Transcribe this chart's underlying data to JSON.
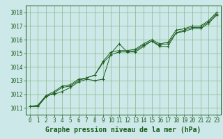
{
  "title": "Graphe pression niveau de la mer (hPa)",
  "background_color": "#cce8e8",
  "grid_color": "#88b888",
  "line_color": "#1a5c1a",
  "marker_color": "#1a5c1a",
  "xlim": [
    -0.5,
    23.5
  ],
  "ylim": [
    1010.5,
    1018.5
  ],
  "xticks": [
    0,
    1,
    2,
    3,
    4,
    5,
    6,
    7,
    8,
    9,
    10,
    11,
    12,
    13,
    14,
    15,
    16,
    17,
    18,
    19,
    20,
    21,
    22,
    23
  ],
  "yticks": [
    1011,
    1012,
    1013,
    1014,
    1015,
    1016,
    1017,
    1018
  ],
  "series": [
    [
      1011.1,
      1011.1,
      1011.9,
      1012.0,
      1012.2,
      1012.5,
      1012.9,
      1013.1,
      1013.0,
      1013.1,
      1015.0,
      1015.7,
      1015.1,
      1015.1,
      1015.5,
      1015.9,
      1015.5,
      1015.5,
      1016.5,
      1016.6,
      1016.8,
      1016.8,
      1017.2,
      1017.8
    ],
    [
      1011.1,
      1011.1,
      1011.8,
      1012.1,
      1012.5,
      1012.6,
      1013.0,
      1013.2,
      1013.4,
      1014.3,
      1014.9,
      1015.1,
      1015.1,
      1015.2,
      1015.6,
      1015.9,
      1015.6,
      1015.7,
      1016.5,
      1016.7,
      1016.9,
      1016.9,
      1017.3,
      1017.9
    ],
    [
      1011.1,
      1011.2,
      1011.9,
      1012.2,
      1012.6,
      1012.7,
      1013.1,
      1013.2,
      1013.4,
      1014.4,
      1015.1,
      1015.2,
      1015.2,
      1015.3,
      1015.7,
      1016.0,
      1015.7,
      1015.8,
      1016.7,
      1016.8,
      1017.0,
      1017.0,
      1017.4,
      1018.0
    ]
  ],
  "title_fontsize": 7,
  "tick_fontsize": 5.5
}
